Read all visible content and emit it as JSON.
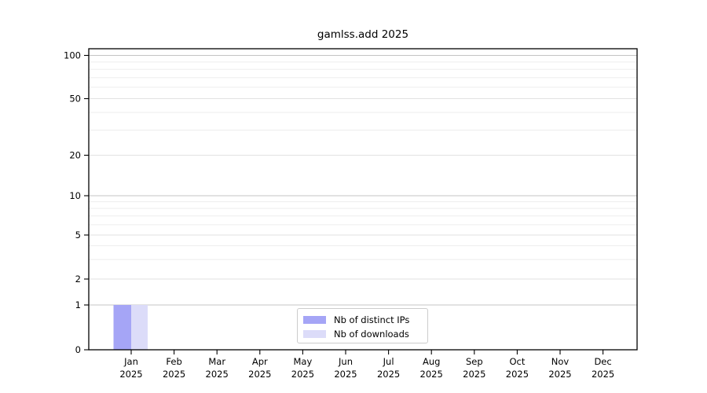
{
  "chart_data": {
    "type": "bar",
    "title": "gamlss.add 2025",
    "categories": [
      "Jan",
      "Feb",
      "Mar",
      "Apr",
      "May",
      "Jun",
      "Jul",
      "Aug",
      "Sep",
      "Oct",
      "Nov",
      "Dec"
    ],
    "x_axis": {
      "year_label": "2025"
    },
    "series": [
      {
        "name": "Nb of distinct IPs",
        "color": "#a5a5f6",
        "values": [
          1,
          0,
          0,
          0,
          0,
          0,
          0,
          0,
          0,
          0,
          0,
          0
        ]
      },
      {
        "name": "Nb of downloads",
        "color": "#dcdcf9",
        "values": [
          1,
          0,
          0,
          0,
          0,
          0,
          0,
          0,
          0,
          0,
          0,
          0
        ]
      }
    ],
    "y_axis": {
      "scale": "log-like with 0 baseline",
      "ticks": [
        0,
        1,
        2,
        5,
        10,
        20,
        50,
        100
      ],
      "minor_ticks": [
        3,
        4,
        6,
        7,
        8,
        9,
        30,
        40,
        60,
        70,
        80,
        90
      ],
      "ylim": [
        0,
        110
      ]
    },
    "grid": true,
    "legend_position": "inside-bottom-center",
    "colors": {
      "major_gridline": "#c4c4c4",
      "labeled_minor_gridline": "#e2e2e2",
      "minor_gridline": "#ededed",
      "spine": "#000000"
    }
  }
}
